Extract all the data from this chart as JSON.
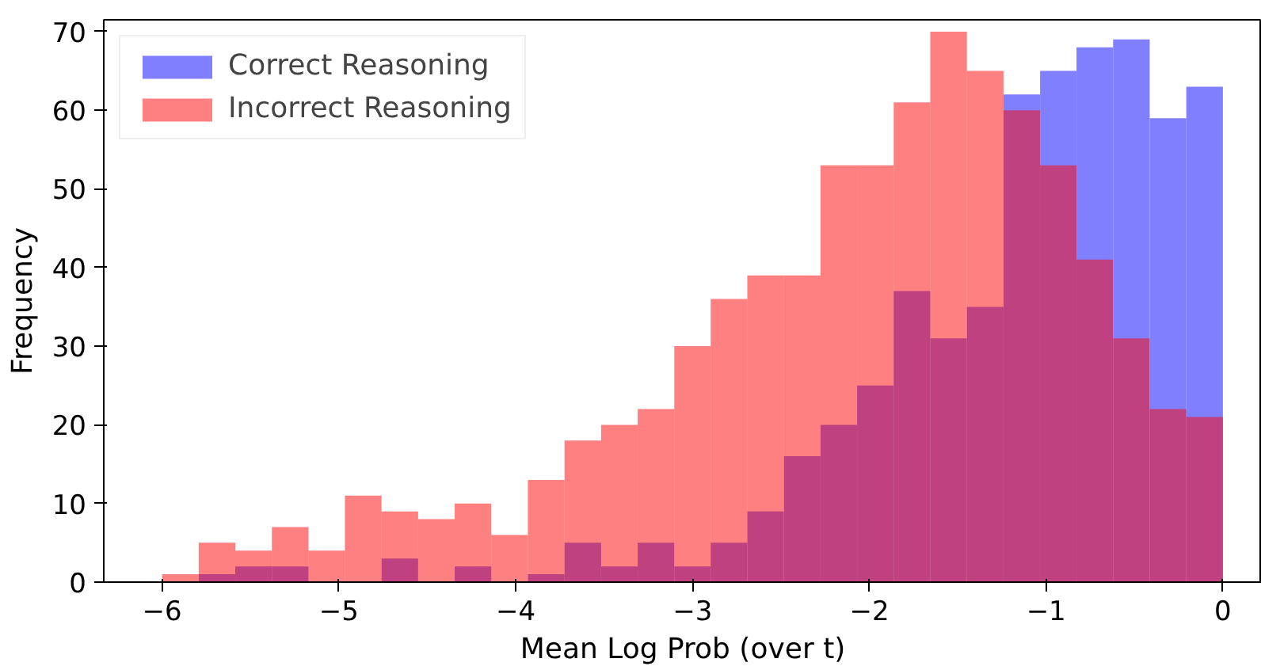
{
  "chart_data": {
    "type": "histogram",
    "xlabel": "Mean Log Prob (over t)",
    "ylabel": "Frequency",
    "bins": [
      -6,
      -5.793,
      -5.586,
      -5.379,
      -5.172,
      -4.966,
      -4.759,
      -4.552,
      -4.345,
      -4.138,
      -3.931,
      -3.724,
      -3.517,
      -3.31,
      -3.103,
      -2.897,
      -2.69,
      -2.483,
      -2.276,
      -2.069,
      -1.862,
      -1.655,
      -1.448,
      -1.241,
      -1.034,
      -0.828,
      -0.621,
      -0.414,
      -0.207,
      0
    ],
    "series": [
      {
        "name": "Correct Reasoning",
        "color": "#8080ff",
        "values": [
          0,
          1,
          2,
          2,
          0,
          0,
          3,
          0,
          2,
          0,
          1,
          5,
          2,
          5,
          2,
          5,
          9,
          16,
          20,
          25,
          37,
          31,
          35,
          62,
          65,
          68,
          69,
          59,
          63
        ]
      },
      {
        "name": "Incorrect Reasoning",
        "color": "#ff8080",
        "values": [
          1,
          5,
          4,
          7,
          4,
          11,
          9,
          8,
          10,
          6,
          13,
          18,
          20,
          22,
          30,
          36,
          39,
          39,
          53,
          53,
          61,
          70,
          65,
          60,
          53,
          41,
          31,
          22,
          21
        ]
      }
    ],
    "xlim": [
      -6.33,
      0.22
    ],
    "ylim": [
      0,
      71.5
    ],
    "xticks": [
      -6,
      -5,
      -4,
      -3,
      -2,
      -1,
      0
    ],
    "yticks": [
      0,
      10,
      20,
      30,
      40,
      50,
      60,
      70
    ],
    "legend": "top left"
  }
}
